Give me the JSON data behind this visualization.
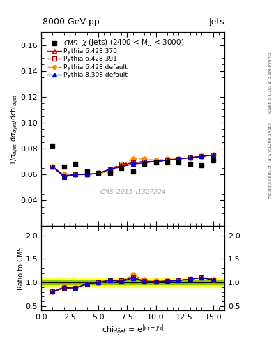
{
  "title_left": "8000 GeV pp",
  "title_right": "Jets",
  "annotation": "$\\chi$ (jets) (2400 < Mjj < 3000)",
  "watermark": "CMS_2015_I1327224",
  "right_label_top": "Rivet 3.1.10, ≥ 3.1M events",
  "right_label_bot": "mcplots.cern.ch [arXiv:1306.3436]",
  "ylabel_main": "1/$\\sigma_{dijet}$ d$\\sigma_{dijet}$/dchi$_{dijet}$",
  "ylabel_ratio": "Ratio to CMS",
  "xlabel": "chi$_{dijet}$ = e$^{|y_1 - y_2|}$",
  "xlim": [
    0,
    16
  ],
  "ylim_main": [
    0.02,
    0.17
  ],
  "ylim_ratio": [
    0.4,
    2.2
  ],
  "yticks_main": [
    0.04,
    0.06,
    0.08,
    0.1,
    0.12,
    0.14,
    0.16
  ],
  "yticks_ratio": [
    0.5,
    1.0,
    1.5,
    2.0
  ],
  "cms_x": [
    1,
    2,
    3,
    4,
    5,
    6,
    7,
    8,
    9,
    10,
    11,
    12,
    13,
    14,
    15
  ],
  "cms_y": [
    0.082,
    0.066,
    0.068,
    0.062,
    0.061,
    0.061,
    0.065,
    0.062,
    0.068,
    0.069,
    0.069,
    0.069,
    0.068,
    0.067,
    0.071
  ],
  "py6_370_x": [
    1,
    2,
    3,
    4,
    5,
    6,
    7,
    8,
    9,
    10,
    11,
    12,
    13,
    14,
    15
  ],
  "py6_370_y": [
    0.066,
    0.058,
    0.06,
    0.06,
    0.061,
    0.064,
    0.067,
    0.069,
    0.07,
    0.07,
    0.071,
    0.072,
    0.073,
    0.074,
    0.075
  ],
  "py6_391_x": [
    1,
    2,
    3,
    4,
    5,
    6,
    7,
    8,
    9,
    10,
    11,
    12,
    13,
    14,
    15
  ],
  "py6_391_y": [
    0.066,
    0.058,
    0.06,
    0.06,
    0.061,
    0.064,
    0.068,
    0.069,
    0.07,
    0.07,
    0.071,
    0.072,
    0.073,
    0.074,
    0.075
  ],
  "py6_def_x": [
    1,
    2,
    3,
    4,
    5,
    6,
    7,
    8,
    9,
    10,
    11,
    12,
    13,
    14,
    15
  ],
  "py6_def_y": [
    0.066,
    0.06,
    0.06,
    0.06,
    0.061,
    0.062,
    0.067,
    0.072,
    0.072,
    0.071,
    0.072,
    0.072,
    0.073,
    0.074,
    0.075
  ],
  "py8_def_x": [
    1,
    2,
    3,
    4,
    5,
    6,
    7,
    8,
    9,
    10,
    11,
    12,
    13,
    14,
    15
  ],
  "py8_def_y": [
    0.066,
    0.059,
    0.06,
    0.06,
    0.061,
    0.064,
    0.066,
    0.068,
    0.069,
    0.07,
    0.071,
    0.072,
    0.073,
    0.074,
    0.075
  ],
  "color_py6_370": "#cc0000",
  "color_py6_391": "#880000",
  "color_py6_def": "#ff8800",
  "color_py8_def": "#0000cc",
  "ratio_py6_370": [
    0.805,
    0.879,
    0.882,
    0.968,
    1.0,
    1.049,
    1.031,
    1.113,
    1.029,
    1.014,
    1.029,
    1.043,
    1.074,
    1.104,
    1.056
  ],
  "ratio_py6_391": [
    0.805,
    0.879,
    0.882,
    0.968,
    1.0,
    1.049,
    1.046,
    1.113,
    1.029,
    1.014,
    1.029,
    1.043,
    1.074,
    1.104,
    1.056
  ],
  "ratio_py6_def": [
    0.805,
    0.909,
    0.882,
    0.968,
    1.0,
    1.016,
    1.031,
    1.161,
    1.059,
    1.029,
    1.043,
    1.043,
    1.074,
    1.104,
    1.056
  ],
  "ratio_py8_def": [
    0.805,
    0.894,
    0.882,
    0.968,
    1.0,
    1.049,
    1.015,
    1.097,
    1.015,
    1.014,
    1.029,
    1.043,
    1.074,
    1.104,
    1.056
  ],
  "cms_band_color_green": "#88cc00",
  "cms_band_color_yellow": "#ffff44"
}
